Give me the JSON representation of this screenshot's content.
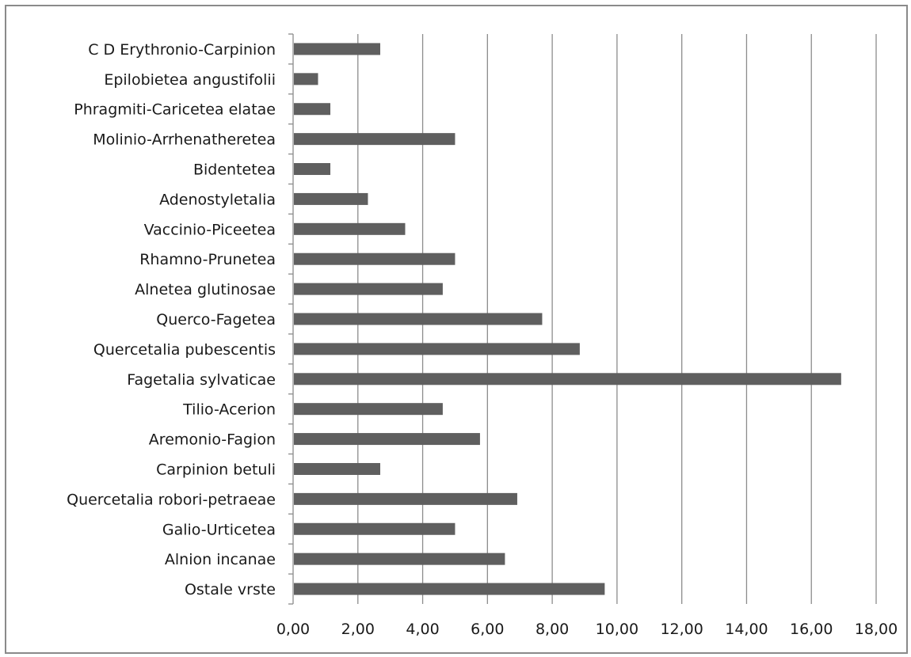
{
  "chart_data": {
    "type": "bar",
    "orientation": "horizontal",
    "title": "",
    "xlabel": "",
    "ylabel": "",
    "xlim": [
      0,
      18
    ],
    "x_ticks": [
      "0,00",
      "2,00",
      "4,00",
      "6,00",
      "8,00",
      "10,00",
      "12,00",
      "14,00",
      "16,00",
      "18,00"
    ],
    "x_tick_values": [
      0,
      2,
      4,
      6,
      8,
      10,
      12,
      14,
      16,
      18
    ],
    "grid": true,
    "legend": "none",
    "bar_color": "#5f5f5f",
    "grid_color": "#8c8c8c",
    "categories": [
      "C D Erythronio-Carpinion",
      "Epilobietea angustifolii",
      "Phragmiti-Caricetea elatae",
      "Molinio-Arrhenatheretea",
      "Bidentetea",
      "Adenostyletalia",
      "Vaccinio-Piceetea",
      "Rhamno-Prunetea",
      "Alnetea glutinosae",
      "Querco-Fagetea",
      "Quercetalia pubescentis",
      "Fagetalia sylvaticae",
      "Tilio-Acerion",
      "Aremonio-Fagion",
      "Carpinion betuli",
      "Quercetalia robori-petraeae",
      "Galio-Urticetea",
      "Alnion incanae",
      "Ostale vrste"
    ],
    "values": [
      2.69,
      0.77,
      1.15,
      5.0,
      1.15,
      2.31,
      3.46,
      5.0,
      4.62,
      7.69,
      8.85,
      16.92,
      4.62,
      5.77,
      2.69,
      6.92,
      5.0,
      6.54,
      9.62
    ]
  }
}
